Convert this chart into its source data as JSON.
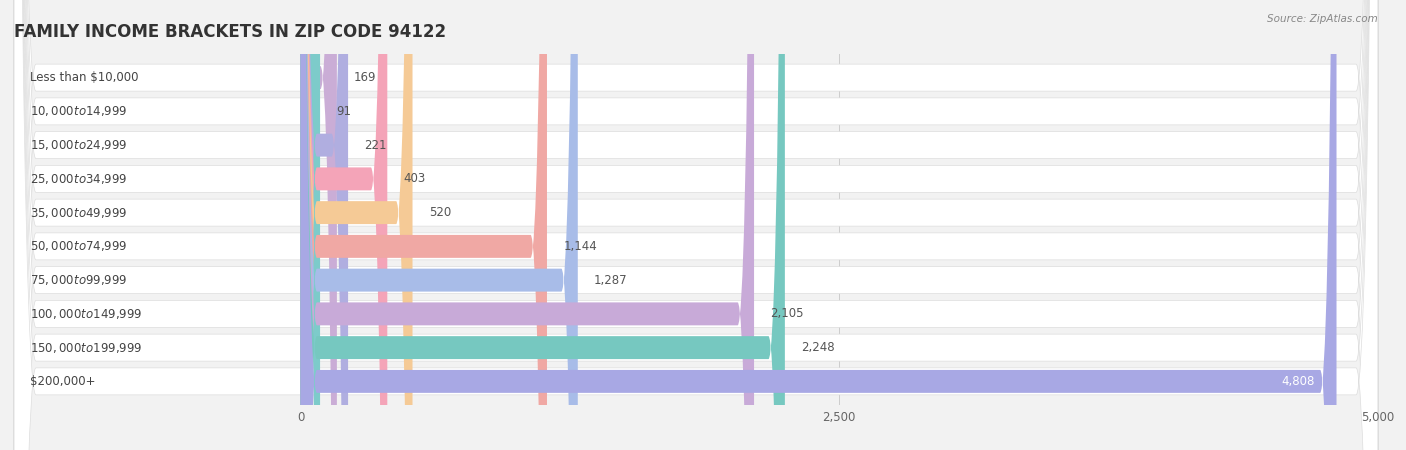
{
  "title": "FAMILY INCOME BRACKETS IN ZIP CODE 94122",
  "source": "Source: ZipAtlas.com",
  "categories": [
    "Less than $10,000",
    "$10,000 to $14,999",
    "$15,000 to $24,999",
    "$25,000 to $34,999",
    "$35,000 to $49,999",
    "$50,000 to $74,999",
    "$75,000 to $99,999",
    "$100,000 to $149,999",
    "$150,000 to $199,999",
    "$200,000+"
  ],
  "values": [
    169,
    91,
    221,
    403,
    520,
    1144,
    1287,
    2105,
    2248,
    4808
  ],
  "bar_colors": [
    "#caadd6",
    "#7dcbca",
    "#b0aee0",
    "#f4a4b8",
    "#f5ca96",
    "#f0a8a4",
    "#a8bce8",
    "#c8aad8",
    "#76c8c0",
    "#a8a8e4"
  ],
  "value_labels": [
    "169",
    "91",
    "221",
    "403",
    "520",
    "1,144",
    "1,287",
    "2,105",
    "2,248",
    "4,808"
  ],
  "xlim": [
    0,
    5000
  ],
  "xticks": [
    0,
    2500,
    5000
  ],
  "background_color": "#f2f2f2",
  "bar_bg_color": "#e8e8e8",
  "title_fontsize": 12,
  "label_fontsize": 8.5,
  "value_fontsize": 8.5
}
